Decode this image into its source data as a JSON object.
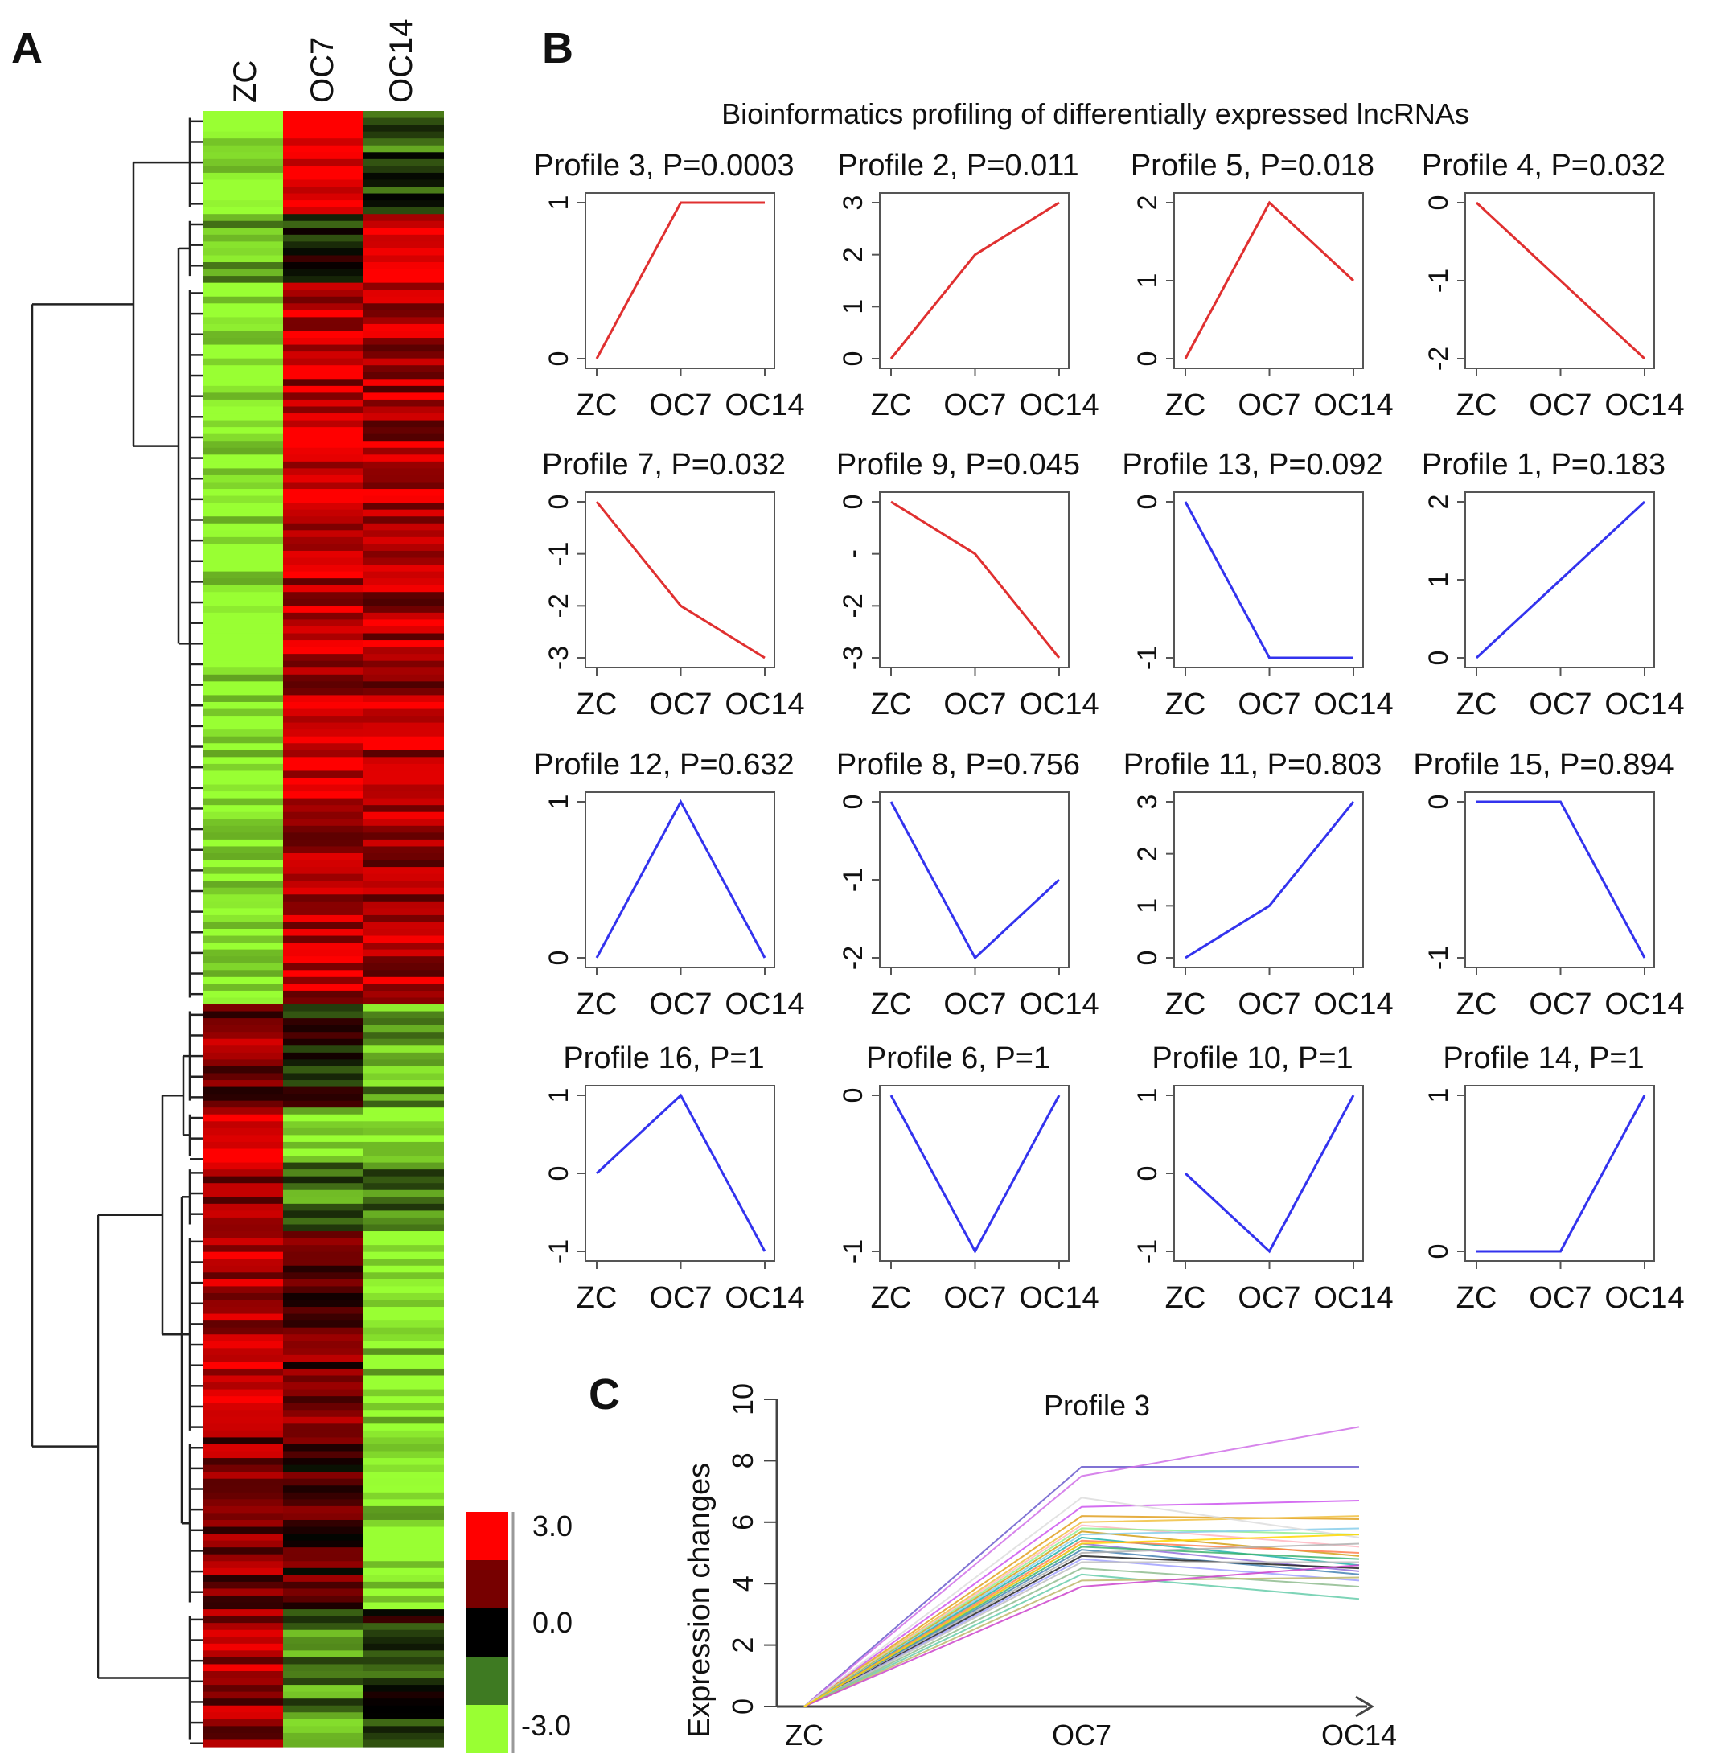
{
  "panels": {
    "A": "A",
    "B": "B",
    "C": "C"
  },
  "colors": {
    "red_series": "#e03030",
    "blue_series": "#3333ee",
    "heat_high": "#ff0000",
    "heat_mid": "#000000",
    "heat_low": "#99ff33"
  },
  "heatmap": {
    "columns": [
      "ZC",
      "OC7",
      "OC14"
    ],
    "legend": {
      "labels": [
        "3.0",
        "0.0",
        "-3.0"
      ],
      "colors": [
        "#ff0000",
        "#770000",
        "#000000",
        "#3e7a22",
        "#99ff33"
      ]
    },
    "clusters": [
      {
        "rows": 15,
        "values": [
          -3.0,
          3.0,
          -1.0
        ],
        "note_color": "upregulated OC7"
      },
      {
        "rows": 10,
        "values": [
          -2.2,
          -0.2,
          2.6
        ]
      },
      {
        "rows": 105,
        "values": [
          -3.0,
          2.2,
          2.0
        ]
      },
      {
        "rows": 15,
        "values": [
          1.5,
          -0.1,
          -1.8
        ]
      },
      {
        "rows": 8,
        "values": [
          3.0,
          -3.0,
          -3.0
        ]
      },
      {
        "rows": 10,
        "values": [
          1.6,
          -1.2,
          -1.4
        ]
      },
      {
        "rows": 30,
        "values": [
          2.0,
          1.2,
          -2.6
        ]
      },
      {
        "rows": 25,
        "values": [
          1.5,
          0.8,
          -2.8
        ]
      },
      {
        "rows": 20,
        "values": [
          1.8,
          -1.5,
          -0.4
        ]
      }
    ]
  },
  "chart_data": [
    {
      "type": "line",
      "title": "Bioinformatics profiling of differentially expressed lncRNAs",
      "categories": [
        "ZC",
        "OC7",
        "OC14"
      ],
      "profiles": [
        {
          "title": "Profile 3, P=0.0003",
          "values": [
            0,
            1,
            1
          ],
          "ylim": [
            0,
            1
          ],
          "yticks": [
            "0",
            "1"
          ],
          "color": "red"
        },
        {
          "title": "Profile 2, P=0.011",
          "values": [
            0,
            2,
            3
          ],
          "ylim": [
            0,
            3
          ],
          "yticks": [
            "0",
            "1",
            "2",
            "3"
          ],
          "color": "red"
        },
        {
          "title": "Profile 5, P=0.018",
          "values": [
            0,
            2,
            1
          ],
          "ylim": [
            0,
            2
          ],
          "yticks": [
            "0",
            "1",
            "2"
          ],
          "color": "red"
        },
        {
          "title": "Profile 4, P=0.032",
          "values": [
            0,
            -1,
            -2
          ],
          "ylim": [
            -2,
            0
          ],
          "yticks": [
            "-2",
            "-1",
            "0"
          ],
          "color": "red"
        },
        {
          "title": "Profile 7, P=0.032",
          "values": [
            0,
            -2,
            -3
          ],
          "ylim": [
            -3,
            0
          ],
          "yticks": [
            "-3",
            "-2",
            "-1",
            "0"
          ],
          "color": "red"
        },
        {
          "title": "Profile 9, P=0.045",
          "values": [
            0,
            -1,
            -3
          ],
          "ylim": [
            -3,
            0
          ],
          "yticks": [
            "-3",
            "-2",
            "-",
            "0"
          ],
          "color": "red"
        },
        {
          "title": "Profile 13, P=0.092",
          "values": [
            0,
            -1,
            -1
          ],
          "ylim": [
            -1,
            0
          ],
          "yticks": [
            "-1",
            "0"
          ],
          "color": "blue"
        },
        {
          "title": "Profile 1, P=0.183",
          "values": [
            0,
            1,
            2
          ],
          "ylim": [
            0,
            2
          ],
          "yticks": [
            "0",
            "1",
            "2"
          ],
          "color": "blue"
        },
        {
          "title": "Profile 12, P=0.632",
          "values": [
            0,
            1,
            0
          ],
          "ylim": [
            0,
            1
          ],
          "yticks": [
            "0",
            "1"
          ],
          "color": "blue"
        },
        {
          "title": "Profile 8, P=0.756",
          "values": [
            0,
            -2,
            -1
          ],
          "ylim": [
            -2,
            0
          ],
          "yticks": [
            "-2",
            "-1",
            "0"
          ],
          "color": "blue"
        },
        {
          "title": "Profile 11, P=0.803",
          "values": [
            0,
            1,
            3
          ],
          "ylim": [
            0,
            3
          ],
          "yticks": [
            "0",
            "1",
            "2",
            "3"
          ],
          "color": "blue"
        },
        {
          "title": "Profile 15, P=0.894",
          "values": [
            0,
            0,
            -1
          ],
          "ylim": [
            -1,
            0
          ],
          "yticks": [
            "-1",
            "0"
          ],
          "color": "blue"
        },
        {
          "title": "Profile 16, P=1",
          "values": [
            0,
            1,
            -1
          ],
          "ylim": [
            -1,
            1
          ],
          "yticks": [
            "-1",
            "0",
            "1"
          ],
          "color": "blue"
        },
        {
          "title": "Profile 6, P=1",
          "values": [
            0,
            -1,
            0
          ],
          "ylim": [
            -1,
            0
          ],
          "yticks": [
            "-1",
            "0"
          ],
          "color": "blue"
        },
        {
          "title": "Profile 10, P=1",
          "values": [
            0,
            -1,
            1
          ],
          "ylim": [
            -1,
            1
          ],
          "yticks": [
            "-1",
            "0",
            "1"
          ],
          "color": "blue"
        },
        {
          "title": "Profile 14, P=1",
          "values": [
            0,
            0,
            1
          ],
          "ylim": [
            0,
            1
          ],
          "yticks": [
            "0",
            "1"
          ],
          "color": "blue"
        }
      ]
    },
    {
      "type": "line",
      "title": "Profile 3",
      "ylabel": "Expression changes",
      "categories": [
        "ZC",
        "OC7",
        "OC14"
      ],
      "ylim": [
        0,
        10
      ],
      "yticks": [
        "0",
        "2",
        "4",
        "6",
        "8",
        "10"
      ],
      "series": [
        {
          "values": [
            0,
            7.8,
            7.8
          ],
          "color": "#6a5acd"
        },
        {
          "values": [
            0,
            7.5,
            9.1
          ],
          "color": "#d070e8"
        },
        {
          "values": [
            0,
            6.5,
            6.7
          ],
          "color": "#cc55ee"
        },
        {
          "values": [
            0,
            6.2,
            6.1
          ],
          "color": "#e0a020"
        },
        {
          "values": [
            0,
            6.0,
            6.2
          ],
          "color": "#f0c040"
        },
        {
          "values": [
            0,
            5.9,
            5.2
          ],
          "color": "#ffb6c1"
        },
        {
          "values": [
            0,
            5.8,
            5.6
          ],
          "color": "#90ee90"
        },
        {
          "values": [
            0,
            5.7,
            4.9
          ],
          "color": "#d4a017"
        },
        {
          "values": [
            0,
            5.6,
            5.8
          ],
          "color": "#87ceeb"
        },
        {
          "values": [
            0,
            5.5,
            4.6
          ],
          "color": "#20b2aa"
        },
        {
          "values": [
            0,
            5.4,
            5.0
          ],
          "color": "#ff7f50"
        },
        {
          "values": [
            0,
            5.3,
            4.4
          ],
          "color": "#9370db"
        },
        {
          "values": [
            0,
            5.2,
            4.8
          ],
          "color": "#3cb371"
        },
        {
          "values": [
            0,
            5.1,
            4.3
          ],
          "color": "#4682b4"
        },
        {
          "values": [
            0,
            5.0,
            5.3
          ],
          "color": "#b0b0b0"
        },
        {
          "values": [
            0,
            4.9,
            4.5
          ],
          "color": "#222222"
        },
        {
          "values": [
            0,
            4.8,
            4.1
          ],
          "color": "#a0a0ff"
        },
        {
          "values": [
            0,
            4.7,
            4.7
          ],
          "color": "#c0c0c0"
        },
        {
          "values": [
            0,
            4.5,
            3.9
          ],
          "color": "#8fbc8f"
        },
        {
          "values": [
            0,
            4.3,
            3.5
          ],
          "color": "#66cdaa"
        },
        {
          "values": [
            0,
            4.1,
            4.2
          ],
          "color": "#bdb76b"
        },
        {
          "values": [
            0,
            3.9,
            4.6
          ],
          "color": "#cc44cc"
        },
        {
          "values": [
            0,
            6.8,
            5.5
          ],
          "color": "#dddddd"
        },
        {
          "values": [
            0,
            5.3,
            5.6
          ],
          "color": "#ffd700"
        }
      ]
    }
  ]
}
